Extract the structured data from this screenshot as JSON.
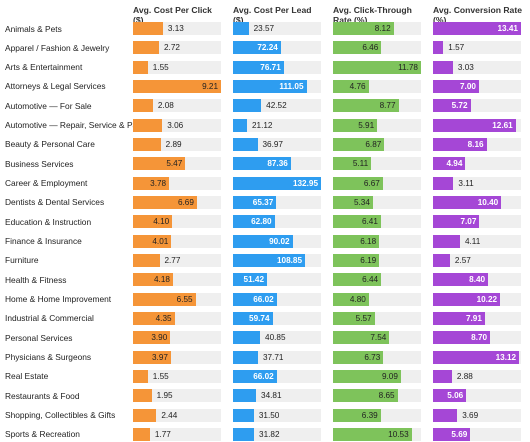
{
  "colors": {
    "cpc": "#f59538",
    "cpl": "#2e9df0",
    "ctr": "#7ec35b",
    "cvr": "#a547d6",
    "track": "#efefef"
  },
  "chart_data": {
    "type": "bar",
    "categories": [
      "Animals & Pets",
      "Apparel / Fashion & Jewelry",
      "Arts & Entertainment",
      "Attorneys & Legal Services",
      "Automotive — For Sale",
      "Automotive — Repair, Service & Parts",
      "Beauty & Personal Care",
      "Business Services",
      "Career & Employment",
      "Dentists & Dental Services",
      "Education & Instruction",
      "Finance & Insurance",
      "Furniture",
      "Health & Fitness",
      "Home & Home Improvement",
      "Industrial & Commercial",
      "Personal Services",
      "Physicians & Surgeons",
      "Real Estate",
      "Restaurants & Food",
      "Shopping, Collectibles & Gifts",
      "Sports & Recreation"
    ],
    "series": [
      {
        "name": "Avg. Cost Per Click ($)",
        "color": "#f59538",
        "max": 9.21,
        "values": [
          "3.13",
          "2.72",
          "1.55",
          "9.21",
          "2.08",
          "3.06",
          "2.89",
          "5.47",
          "3.78",
          "6.69",
          "4.10",
          "4.01",
          "2.77",
          "4.18",
          "6.55",
          "4.35",
          "3.90",
          "3.97",
          "1.55",
          "1.95",
          "2.44",
          "1.77"
        ]
      },
      {
        "name": "Avg. Cost Per Lead ($)",
        "color": "#2e9df0",
        "max": 132.95,
        "values": [
          "23.57",
          "72.24",
          "76.71",
          "111.05",
          "42.52",
          "21.12",
          "36.97",
          "87.36",
          "132.95",
          "65.37",
          "62.80",
          "90.02",
          "108.85",
          "51.42",
          "66.02",
          "59.74",
          "40.85",
          "37.71",
          "66.02",
          "34.81",
          "31.50",
          "31.82"
        ]
      },
      {
        "name": "Avg. Click-Through Rate (%)",
        "color": "#7ec35b",
        "max": 11.78,
        "values": [
          "8.12",
          "6.46",
          "11.78",
          "4.76",
          "8.77",
          "5.91",
          "6.87",
          "5.11",
          "6.67",
          "5.34",
          "6.41",
          "6.18",
          "6.19",
          "6.44",
          "4.80",
          "5.57",
          "7.54",
          "6.73",
          "9.09",
          "8.65",
          "6.39",
          "10.53"
        ]
      },
      {
        "name": "Avg. Conversion Rate (%)",
        "color": "#a547d6",
        "max": 13.41,
        "values": [
          "13.41",
          "1.57",
          "3.03",
          "7.00",
          "5.72",
          "12.61",
          "8.16",
          "4.94",
          "3.11",
          "10.40",
          "7.07",
          "4.11",
          "2.57",
          "8.40",
          "10.22",
          "7.91",
          "8.70",
          "13.12",
          "2.88",
          "5.06",
          "3.69",
          "5.69"
        ]
      }
    ]
  }
}
